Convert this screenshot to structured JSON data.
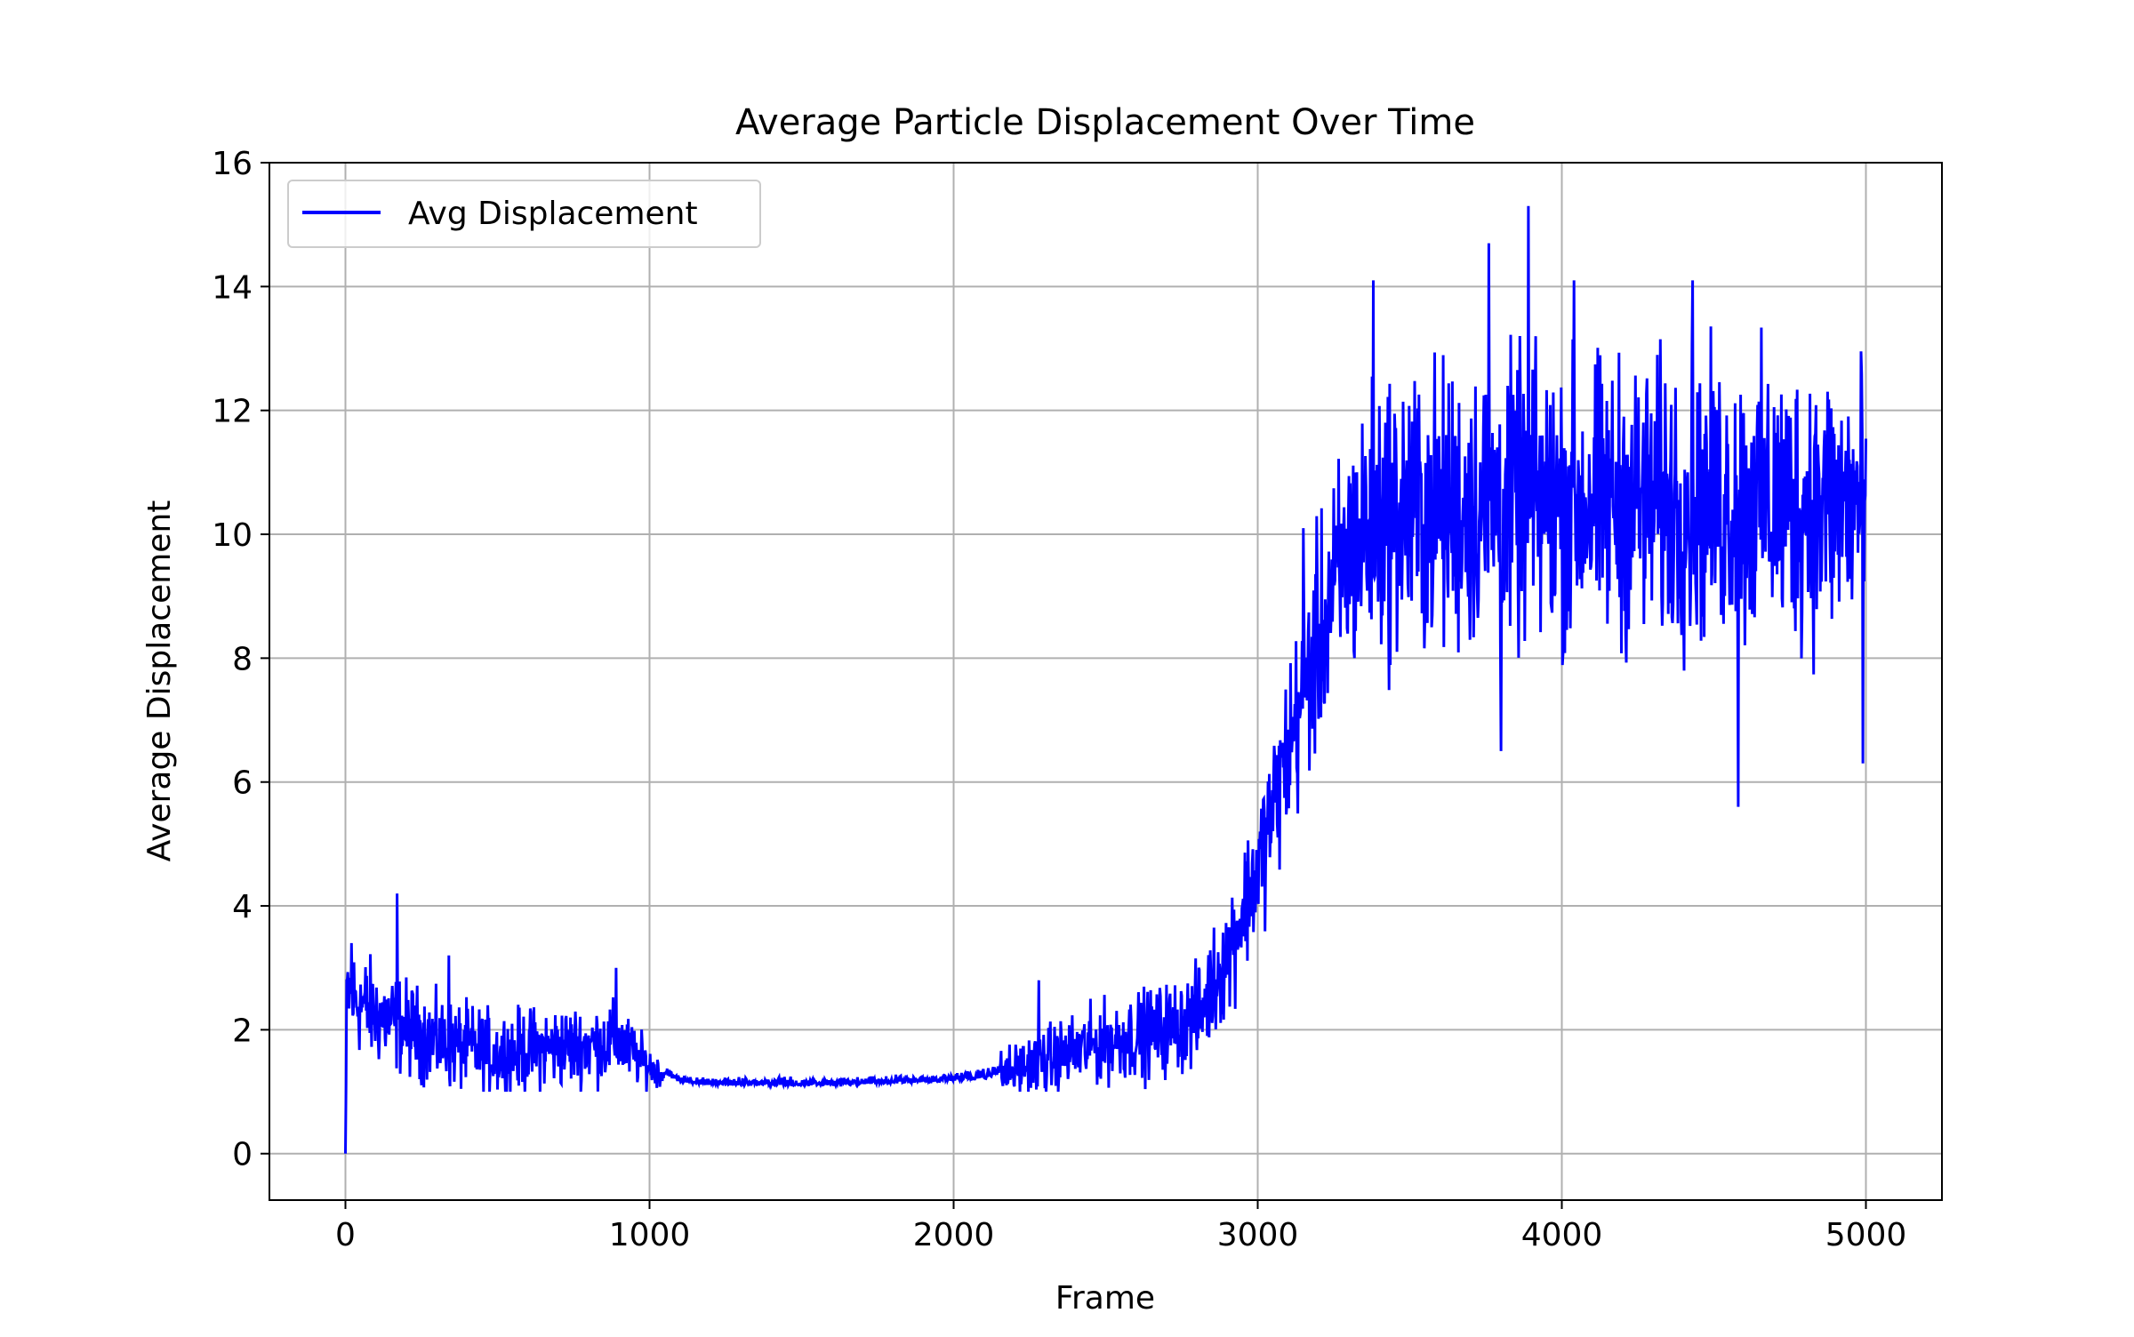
{
  "chart_data": {
    "type": "line",
    "title": "Average Particle Displacement Over Time",
    "xlabel": "Frame",
    "ylabel": "Average Displacement",
    "xlim": [
      -250,
      5250
    ],
    "ylim": [
      -0.75,
      16
    ],
    "xticks": [
      0,
      1000,
      2000,
      3000,
      4000,
      5000
    ],
    "yticks": [
      0,
      2,
      4,
      6,
      8,
      10,
      12,
      14,
      16
    ],
    "grid": true,
    "legend_position": "top-left",
    "series": [
      {
        "name": "Avg Displacement",
        "color": "#0000ff",
        "x_start": 0,
        "x_end": 5000,
        "profile_points": [
          [
            0,
            0.0
          ],
          [
            5,
            2.6
          ],
          [
            30,
            2.5
          ],
          [
            100,
            2.25
          ],
          [
            170,
            2.1
          ],
          [
            300,
            1.8
          ],
          [
            500,
            1.6
          ],
          [
            650,
            1.7
          ],
          [
            800,
            1.75
          ],
          [
            900,
            1.8
          ],
          [
            1000,
            1.4
          ],
          [
            1100,
            1.15
          ],
          [
            1200,
            1.1
          ],
          [
            1600,
            1.1
          ],
          [
            1900,
            1.15
          ],
          [
            2100,
            1.2
          ],
          [
            2300,
            1.5
          ],
          [
            2500,
            1.8
          ],
          [
            2700,
            2.0
          ],
          [
            2800,
            2.2
          ],
          [
            2900,
            3.2
          ],
          [
            3000,
            4.6
          ],
          [
            3100,
            6.5
          ],
          [
            3200,
            8.3
          ],
          [
            3300,
            9.7
          ],
          [
            3400,
            10.3
          ],
          [
            3600,
            10.4
          ],
          [
            3800,
            10.5
          ],
          [
            4000,
            10.5
          ],
          [
            4500,
            10.5
          ],
          [
            5000,
            10.5
          ]
        ],
        "noise_points": [
          [
            0,
            0.55
          ],
          [
            300,
            0.45
          ],
          [
            900,
            0.4
          ],
          [
            1050,
            0.12
          ],
          [
            2000,
            0.12
          ],
          [
            2300,
            0.35
          ],
          [
            2800,
            0.5
          ],
          [
            3000,
            0.7
          ],
          [
            3200,
            1.1
          ],
          [
            3400,
            1.45
          ],
          [
            5000,
            1.45
          ]
        ],
        "spikes": [
          [
            170,
            4.2
          ],
          [
            20,
            3.4
          ],
          [
            340,
            3.2
          ],
          [
            890,
            3.0
          ],
          [
            2280,
            2.8
          ],
          [
            3150,
            10.1
          ],
          [
            3380,
            14.1
          ],
          [
            3760,
            14.7
          ],
          [
            3890,
            15.3
          ],
          [
            4040,
            14.1
          ],
          [
            4430,
            14.1
          ],
          [
            4580,
            5.6
          ],
          [
            4990,
            6.3
          ],
          [
            3800,
            6.5
          ]
        ]
      }
    ]
  }
}
